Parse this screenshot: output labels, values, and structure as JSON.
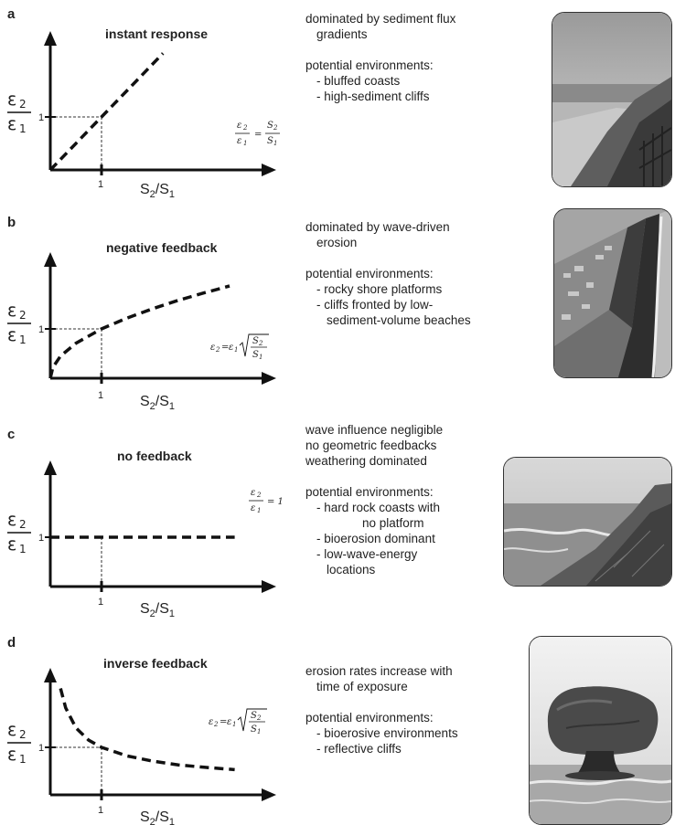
{
  "panels": [
    {
      "letter": "a",
      "title": "instant response",
      "equation": {
        "lhs_num": "ε",
        "lhs_num_sub": "2",
        "lhs_den": "ε",
        "lhs_den_sub": "1",
        "eq": "=",
        "rhs_num": "S",
        "rhs_num_sub": "2",
        "rhs_den": "S",
        "rhs_den_sub": "1"
      },
      "description": {
        "lines": [
          "dominated by sediment flux",
          "gradients"
        ],
        "environments_heading": "potential environments:",
        "environments": [
          "- bluffed coasts",
          "- high-sediment cliffs"
        ]
      },
      "photo_icon": "coastal-bluff-photo"
    },
    {
      "letter": "b",
      "title": "negative feedback",
      "equation": {
        "lhs": "ε",
        "lhs_sub": "2",
        "eq": "=",
        "rhs": "ε",
        "rhs_sub": "1",
        "num": "S",
        "num_sub": "2",
        "den": "S",
        "den_sub": "1"
      },
      "description": {
        "lines": [
          "dominated by wave-driven",
          "erosion"
        ],
        "environments_heading": "potential environments:",
        "environments": [
          "- rocky shore platforms",
          "- cliffs fronted by low-",
          "sediment-volume beaches"
        ]
      },
      "photo_icon": "aerial-cliff-photo"
    },
    {
      "letter": "c",
      "title": "no feedback",
      "equation": {
        "num": "ε",
        "num_sub": "2",
        "den": "ε",
        "den_sub": "1",
        "eq": "= 1"
      },
      "description": {
        "lines": [
          "wave influence negligible",
          "no geometric feedbacks",
          "weathering dominated"
        ],
        "environments_heading": "potential environments:",
        "environments": [
          "- hard rock coasts with",
          "no platform",
          "- bioerosion dominant",
          "- low-wave-energy",
          "locations"
        ]
      },
      "photo_icon": "hard-rock-coast-photo"
    },
    {
      "letter": "d",
      "title": "inverse feedback",
      "equation": {
        "lhs": "ε",
        "lhs_sub": "2",
        "eq": "=",
        "rhs": "ε",
        "rhs_sub": "1",
        "num": "S",
        "num_sub": "2",
        "den": "S",
        "den_sub": "1"
      },
      "description": {
        "lines": [
          "erosion rates increase with",
          "time of exposure"
        ],
        "environments_heading": "potential environments:",
        "environments": [
          "- bioerosive environments",
          "- reflective cliffs"
        ]
      },
      "photo_icon": "mushroom-rock-photo"
    }
  ],
  "axes": {
    "x_label": "S",
    "x_label_sub1": "2",
    "x_label_sep": "/S",
    "x_label_sub2": "1",
    "y_label_num": "ε",
    "y_label_num_sub": "2",
    "y_label_den": "ε",
    "y_label_den_sub": "1",
    "tick": "1"
  },
  "chart_data": [
    {
      "type": "line",
      "title": "instant response",
      "xlabel": "S2/S1",
      "ylabel": "ε2/ε1",
      "x": [
        0,
        1,
        2.2
      ],
      "y": [
        0,
        1,
        2.2
      ],
      "style": "dashed",
      "reference_point": [
        1,
        1
      ]
    },
    {
      "type": "line",
      "title": "negative feedback",
      "xlabel": "S2/S1",
      "ylabel": "ε2/ε1",
      "x": [
        0,
        0.05,
        0.2,
        0.5,
        1,
        1.5,
        2,
        2.5,
        3,
        3.5
      ],
      "y": [
        0,
        0.22,
        0.45,
        0.71,
        1,
        1.22,
        1.41,
        1.58,
        1.73,
        1.87
      ],
      "style": "dashed",
      "reference_point": [
        1,
        1
      ]
    },
    {
      "type": "line",
      "title": "no feedback",
      "xlabel": "S2/S1",
      "ylabel": "ε2/ε1",
      "x": [
        0,
        1,
        3.6
      ],
      "y": [
        1,
        1,
        1
      ],
      "style": "dashed",
      "reference_point": [
        1,
        1
      ]
    },
    {
      "type": "line",
      "title": "inverse feedback",
      "xlabel": "S2/S1",
      "ylabel": "ε2/ε1",
      "x": [
        0.2,
        0.3,
        0.5,
        0.75,
        1,
        1.5,
        2,
        2.5,
        3,
        3.6
      ],
      "y": [
        2.24,
        1.83,
        1.41,
        1.15,
        1,
        0.82,
        0.71,
        0.63,
        0.58,
        0.53
      ],
      "style": "dashed",
      "reference_point": [
        1,
        1
      ]
    }
  ]
}
